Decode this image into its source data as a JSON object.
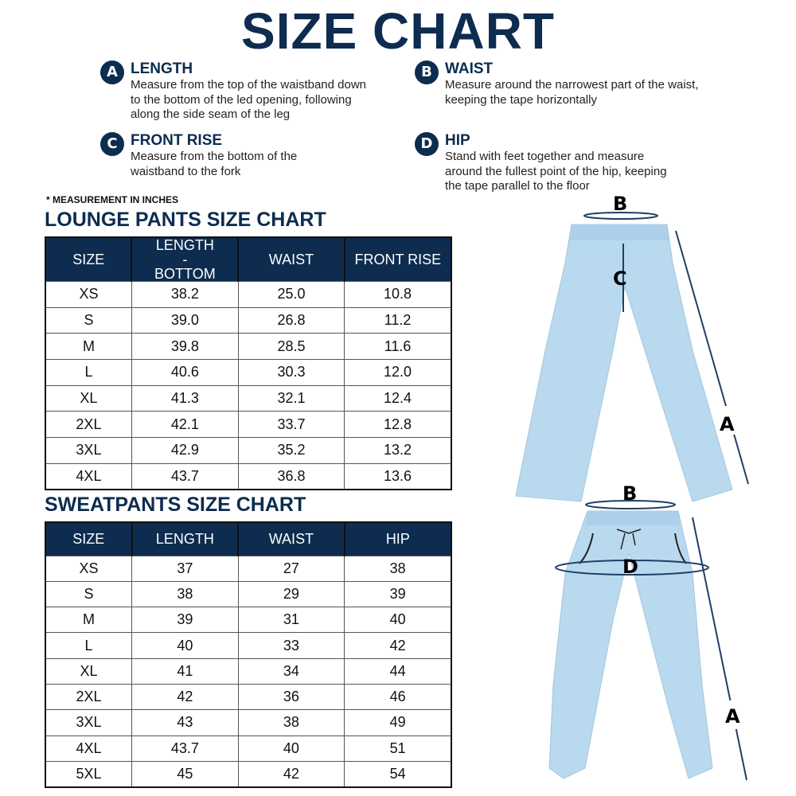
{
  "title": "SIZE CHART",
  "measures": [
    {
      "letter": "A",
      "name": "LENGTH",
      "desc": "Measure from the top of the waistband down to the bottom of the led opening, following along the side seam of the leg"
    },
    {
      "letter": "B",
      "name": "WAIST",
      "desc": "Measure around the narrowest part of the waist, keeping the tape horizontally"
    },
    {
      "letter": "C",
      "name": "FRONT RISE",
      "desc": "Measure from the bottom of the waistband to the fork"
    },
    {
      "letter": "D",
      "name": "HIP",
      "desc": "Stand with feet together and measure around the fullest point of the hip, keeping the tape parallel to the floor"
    }
  ],
  "note": "* MEASUREMENT IN INCHES",
  "lounge": {
    "title": "LOUNGE PANTS SIZE CHART",
    "headers": [
      "SIZE",
      "LENGTH - BOTTOM",
      "WAIST",
      "FRONT RISE"
    ],
    "rows": [
      [
        "XS",
        "38.2",
        "25.0",
        "10.8"
      ],
      [
        "S",
        "39.0",
        "26.8",
        "11.2"
      ],
      [
        "M",
        "39.8",
        "28.5",
        "11.6"
      ],
      [
        "L",
        "40.6",
        "30.3",
        "12.0"
      ],
      [
        "XL",
        "41.3",
        "32.1",
        "12.4"
      ],
      [
        "2XL",
        "42.1",
        "33.7",
        "12.8"
      ],
      [
        "3XL",
        "42.9",
        "35.2",
        "13.2"
      ],
      [
        "4XL",
        "43.7",
        "36.8",
        "13.6"
      ]
    ]
  },
  "sweat": {
    "title": "SWEATPANTS SIZE CHART",
    "headers": [
      "SIZE",
      "LENGTH",
      "WAIST",
      "HIP"
    ],
    "rows": [
      [
        "XS",
        "37",
        "27",
        "38"
      ],
      [
        "S",
        "38",
        "29",
        "39"
      ],
      [
        "M",
        "39",
        "31",
        "40"
      ],
      [
        "L",
        "40",
        "33",
        "42"
      ],
      [
        "XL",
        "41",
        "34",
        "44"
      ],
      [
        "2XL",
        "42",
        "36",
        "46"
      ],
      [
        "3XL",
        "43",
        "38",
        "49"
      ],
      [
        "4XL",
        "43.7",
        "40",
        "51"
      ],
      [
        "5XL",
        "45",
        "42",
        "54"
      ]
    ]
  },
  "diagram_labels": {
    "top_b": "B",
    "top_c": "C",
    "top_a": "A",
    "bot_b": "B",
    "bot_d": "D",
    "bot_a": "A"
  },
  "colors": {
    "navy": "#0d2c4f",
    "pants": "#b9d9ef"
  }
}
